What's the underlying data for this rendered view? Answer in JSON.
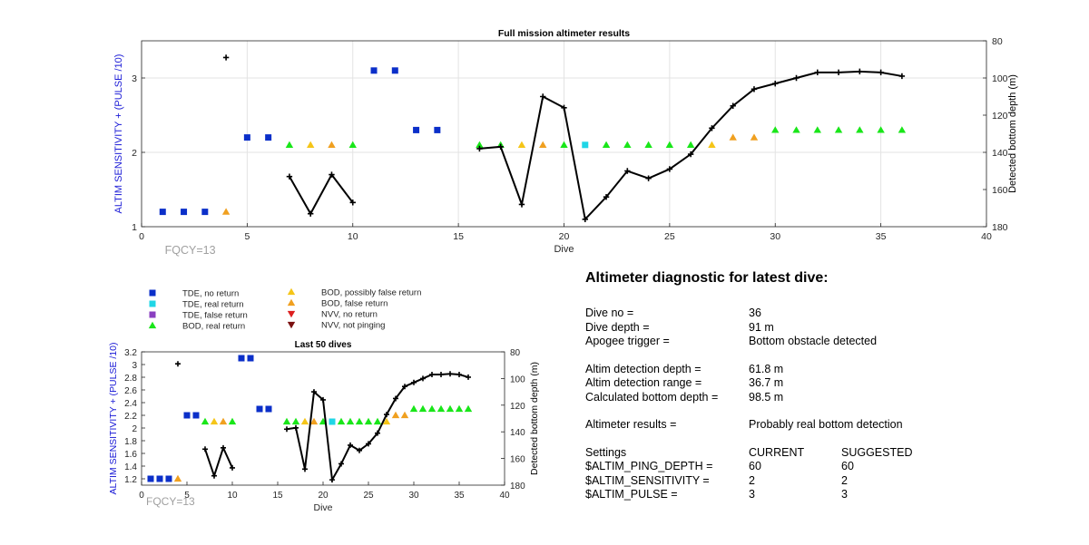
{
  "chart_data": [
    {
      "type": "scatter",
      "title": "Full mission altimeter results",
      "xlabel": "Dive",
      "ylabel": "ALTIM SENSITIVITY + (PULSE /10)",
      "y2label": "Detected bottom depth (m)",
      "xlim": [
        0,
        40
      ],
      "ylim": [
        1,
        3.5
      ],
      "y2lim": [
        80,
        180
      ],
      "y2_reversed": true,
      "xticks": [
        "0",
        "5",
        "10",
        "15",
        "20",
        "25",
        "30",
        "35",
        "40"
      ],
      "yticks": [
        "1",
        "2",
        "3"
      ],
      "y2ticks": [
        "80",
        "100",
        "120",
        "140",
        "160",
        "180"
      ],
      "grid": true,
      "annotation": "FQCY=13"
    },
    {
      "type": "scatter",
      "title": "Last 50 dives",
      "xlabel": "Dive",
      "ylabel": "ALTIM SENSITIVITY + (PULSE /10)",
      "y2label": "Detected bottom depth (m)",
      "xlim": [
        0,
        40
      ],
      "ylim": [
        1.1,
        3.2
      ],
      "y2lim": [
        80,
        180
      ],
      "y2_reversed": true,
      "xticks": [
        "0",
        "5",
        "10",
        "15",
        "20",
        "25",
        "30",
        "35",
        "40"
      ],
      "yticks": [
        "1.2",
        "1.4",
        "1.6",
        "1.8",
        "2",
        "2.2",
        "2.4",
        "2.6",
        "2.8",
        "3",
        "3.2"
      ],
      "y2ticks": [
        "80",
        "100",
        "120",
        "140",
        "160",
        "180"
      ],
      "grid": false,
      "annotation": "FQCY=13"
    }
  ],
  "series": {
    "tde_no_return": [
      [
        1,
        1.2
      ],
      [
        2,
        1.2
      ],
      [
        3,
        1.2
      ],
      [
        5,
        2.2
      ],
      [
        6,
        2.2
      ],
      [
        11,
        3.1
      ],
      [
        12,
        3.1
      ],
      [
        13,
        2.3
      ],
      [
        14,
        2.3
      ]
    ],
    "tde_real_return": [
      [
        21,
        2.1
      ]
    ],
    "bod_real_return": [
      [
        7,
        2.1
      ],
      [
        10,
        2.1
      ],
      [
        16,
        2.1
      ],
      [
        17,
        2.1
      ],
      [
        20,
        2.1
      ],
      [
        22,
        2.1
      ],
      [
        23,
        2.1
      ],
      [
        24,
        2.1
      ],
      [
        25,
        2.1
      ],
      [
        26,
        2.1
      ],
      [
        30,
        2.3
      ],
      [
        31,
        2.3
      ],
      [
        32,
        2.3
      ],
      [
        33,
        2.3
      ],
      [
        34,
        2.3
      ],
      [
        35,
        2.3
      ],
      [
        36,
        2.3
      ]
    ],
    "bod_possibly_false": [
      [
        8,
        2.1
      ],
      [
        18,
        2.1
      ],
      [
        27,
        2.1
      ]
    ],
    "bod_false_return": [
      [
        4,
        1.2
      ],
      [
        9,
        2.1
      ],
      [
        19,
        2.1
      ],
      [
        28,
        2.2
      ],
      [
        29,
        2.2
      ]
    ],
    "isolated_depth": [
      [
        4,
        89
      ]
    ],
    "depth_segments": [
      [
        [
          7,
          153
        ],
        [
          8,
          173
        ],
        [
          9,
          152
        ],
        [
          10,
          167
        ]
      ],
      [
        [
          16,
          138
        ],
        [
          17,
          137
        ],
        [
          18,
          168
        ],
        [
          19,
          110
        ],
        [
          20,
          116
        ],
        [
          21,
          176
        ],
        [
          22,
          164
        ],
        [
          23,
          150
        ],
        [
          24,
          154
        ],
        [
          25,
          149
        ],
        [
          26,
          141
        ],
        [
          27,
          127
        ],
        [
          28,
          115
        ],
        [
          29,
          106
        ],
        [
          30,
          103
        ],
        [
          31,
          100
        ],
        [
          32,
          97
        ],
        [
          33,
          97
        ],
        [
          34,
          96.5
        ],
        [
          35,
          97
        ],
        [
          36,
          99
        ]
      ]
    ]
  },
  "legend": [
    {
      "label": "TDE, no return",
      "marker": "square",
      "color": "#0b2fc9"
    },
    {
      "label": "TDE, real return",
      "marker": "square",
      "color": "#1fd6e6"
    },
    {
      "label": "TDE, false return",
      "marker": "square",
      "color": "#8a3fc0"
    },
    {
      "label": "BOD, real return",
      "marker": "triangle-up",
      "color": "#19e619"
    },
    {
      "label": "BOD, possibly false return",
      "marker": "triangle-up",
      "color": "#f5c518"
    },
    {
      "label": "BOD, false return",
      "marker": "triangle-up",
      "color": "#f0a020"
    },
    {
      "label": "NVV, no return",
      "marker": "triangle-down",
      "color": "#dd2020"
    },
    {
      "label": "NVV, not pinging",
      "marker": "triangle-down",
      "color": "#7a1010"
    }
  ],
  "colors": {
    "left_axis_label": "#1a1ad6",
    "annotation": "#a0a0a0",
    "depth_line": "#000000"
  },
  "diagnostic": {
    "title": "Altimeter diagnostic for latest dive:",
    "dive_no_label": "Dive no =",
    "dive_no_value": "36",
    "dive_depth_label": "Dive depth =",
    "dive_depth_value": "91 m",
    "apogee_label": "Apogee trigger =",
    "apogee_value": "Bottom obstacle detected",
    "det_depth_label": "Altim detection depth =",
    "det_depth_value": "61.8 m",
    "det_range_label": "Altim detection range =",
    "det_range_value": "36.7 m",
    "calc_depth_label": "Calculated bottom depth =",
    "calc_depth_value": "98.5 m",
    "results_label": "Altimeter results =",
    "results_value": "Probably real bottom detection",
    "settings_label": "Settings",
    "current_label": "CURRENT",
    "suggested_label": "SUGGESTED",
    "ping_depth_label": "$ALTIM_PING_DEPTH =",
    "ping_depth_current": "60",
    "ping_depth_suggested": "60",
    "sensitivity_label": "$ALTIM_SENSITIVITY =",
    "sensitivity_current": "2",
    "sensitivity_suggested": "2",
    "pulse_label": "$ALTIM_PULSE =",
    "pulse_current": "3",
    "pulse_suggested": "3"
  }
}
